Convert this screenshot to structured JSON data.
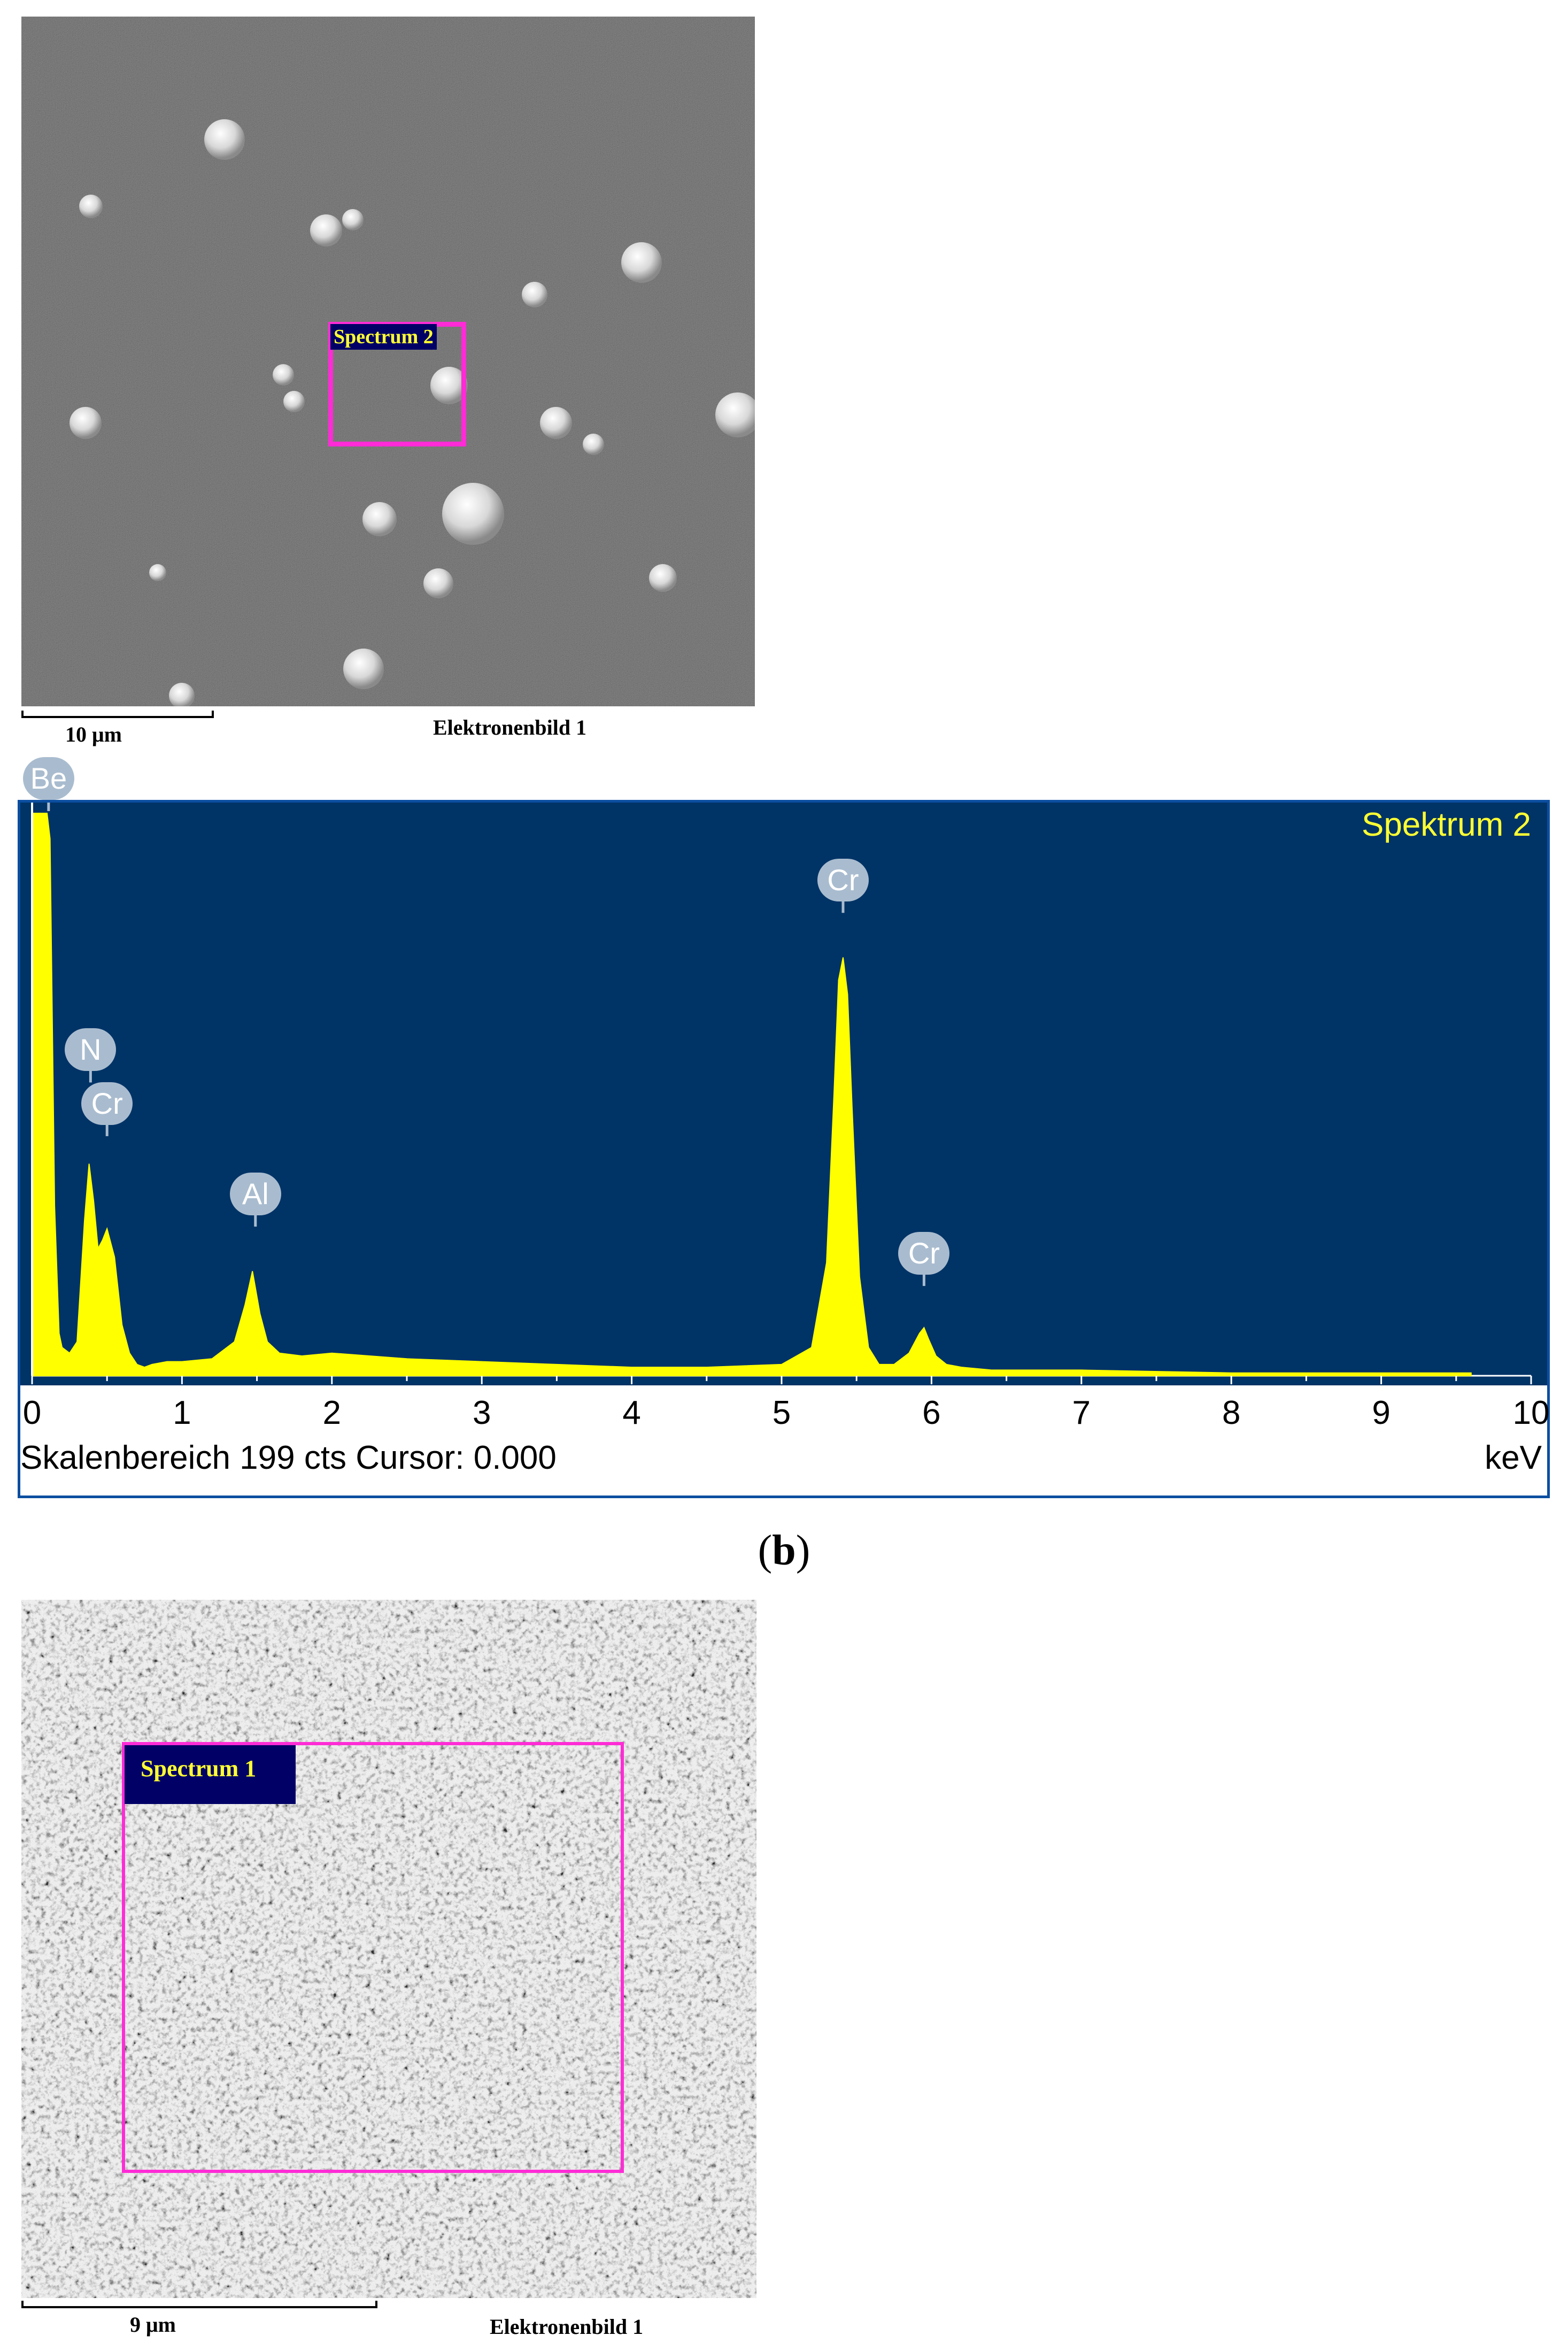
{
  "figure_a": {
    "roi_label": "Spectrum 2",
    "scale_label": "10 μm",
    "image_caption": "Elektronenbild 1"
  },
  "figure_b": {
    "panel_label_open": "(",
    "panel_label_letter": "b",
    "panel_label_close": ")",
    "spectrum_title": "Spektrum 2",
    "status_text": "Skalenbereich 199 cts Cursor: 0.000",
    "unit": "keV",
    "colors": {
      "background": "#003366",
      "trace": "#ffff00",
      "label_badge": "#a9bccf"
    }
  },
  "figure_c": {
    "roi_label": "Spectrum 1",
    "scale_label": "9 μm",
    "image_caption": "Elektronenbild 1"
  },
  "chart_data": {
    "type": "area",
    "title": "Spektrum 2",
    "xlabel": "keV",
    "ylabel": "",
    "xlim": [
      0,
      10
    ],
    "ylim": [
      0,
      199
    ],
    "x_ticks": [
      "0",
      "1",
      "2",
      "3",
      "4",
      "5",
      "6",
      "7",
      "8",
      "9",
      "10"
    ],
    "series": [
      {
        "x": [
          0.0,
          0.05,
          0.1,
          0.12,
          0.15,
          0.18,
          0.2,
          0.25,
          0.3,
          0.35,
          0.38,
          0.41,
          0.44,
          0.47,
          0.5,
          0.55,
          0.6,
          0.65,
          0.7,
          0.75,
          0.8,
          0.9,
          1.0,
          1.2,
          1.35,
          1.42,
          1.47,
          1.52,
          1.57,
          1.65,
          1.8,
          2.0,
          2.5,
          3.0,
          3.5,
          4.0,
          4.5,
          5.0,
          5.2,
          5.3,
          5.35,
          5.38,
          5.41,
          5.44,
          5.47,
          5.52,
          5.58,
          5.65,
          5.75,
          5.85,
          5.92,
          5.95,
          5.98,
          6.03,
          6.1,
          6.2,
          6.4,
          7.0,
          8.0,
          9.0,
          9.6
        ],
        "y": [
          199,
          199,
          199,
          190,
          60,
          15,
          10,
          8,
          12,
          55,
          75,
          62,
          45,
          48,
          52,
          42,
          18,
          8,
          4,
          3,
          4,
          5,
          5,
          6,
          12,
          25,
          37,
          22,
          12,
          8,
          7,
          8,
          6,
          5,
          4,
          3,
          3,
          4,
          10,
          40,
          100,
          140,
          148,
          135,
          95,
          35,
          10,
          4,
          4,
          8,
          15,
          17,
          13,
          7,
          4,
          3,
          2,
          2,
          1,
          1,
          1
        ]
      }
    ],
    "peak_labels": [
      {
        "label": "Be",
        "x": 0.11,
        "y": 199
      },
      {
        "label": "N",
        "x": 0.39,
        "y": 103
      },
      {
        "label": "Cr",
        "x": 0.5,
        "y": 84
      },
      {
        "label": "Al",
        "x": 1.49,
        "y": 52
      },
      {
        "label": "Cr",
        "x": 5.41,
        "y": 163
      },
      {
        "label": "Cr",
        "x": 5.95,
        "y": 31
      }
    ]
  }
}
